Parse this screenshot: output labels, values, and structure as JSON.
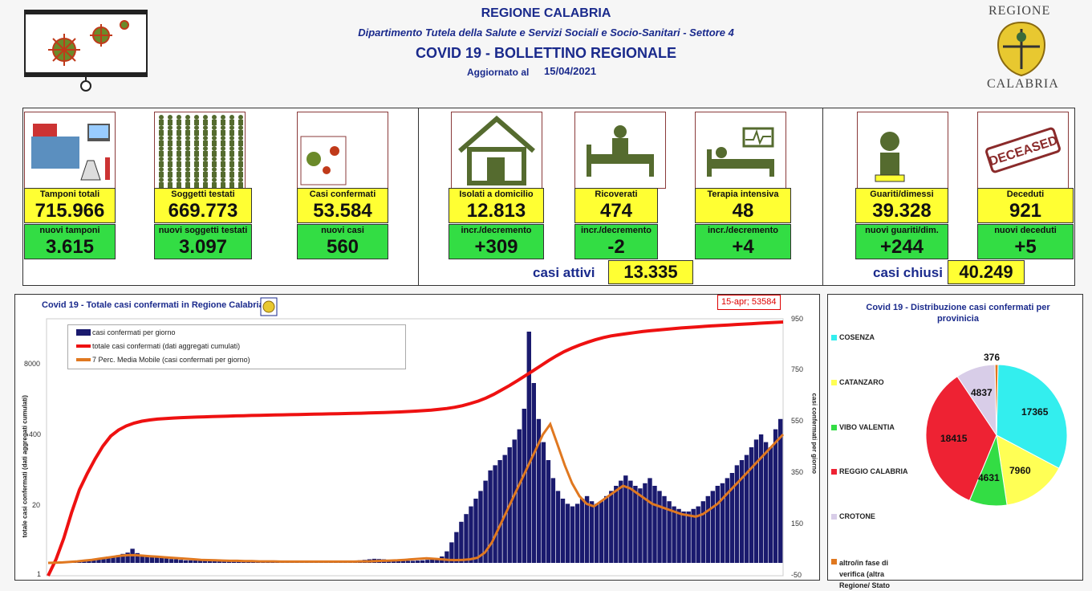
{
  "header": {
    "region": "REGIONE CALABRIA",
    "department": "Dipartimento Tutela della Salute e Servizi Sociali e Socio-Sanitari - Settore 4",
    "bulletin": "COVID 19 - BOLLETTINO REGIONALE",
    "updated_label": "Aggiornato al",
    "updated_date": "15/04/2021",
    "logo_top": "REGIONE",
    "logo_bottom": "CALABRIA"
  },
  "stats": {
    "tamponi": {
      "label": "Tamponi totali",
      "value": "715.966",
      "new_label": "nuovi tamponi",
      "new_value": "3.615"
    },
    "soggetti": {
      "label": "Soggetti testati",
      "value": "669.773",
      "new_label": "nuovi soggetti testati",
      "new_value": "3.097"
    },
    "casi": {
      "label": "Casi confermati",
      "value": "53.584",
      "new_label": "nuovi casi",
      "new_value": "560"
    },
    "isolati": {
      "label": "Isolati a domicilio",
      "value": "12.813",
      "new_label": "incr./decremento",
      "new_value": "+309"
    },
    "ricoverati": {
      "label": "Ricoverati",
      "value": "474",
      "new_label": "incr./decremento",
      "new_value": "-2"
    },
    "terapia": {
      "label": "Terapia intensiva",
      "value": "48",
      "new_label": "incr./decremento",
      "new_value": "+4"
    },
    "guariti": {
      "label": "Guariti/dimessi",
      "value": "39.328",
      "new_label": "nuovi guariti/dim.",
      "new_value": "+244"
    },
    "deceduti": {
      "label": "Deceduti",
      "value": "921",
      "new_label": "nuovi deceduti",
      "new_value": "+5",
      "stamp": "DECEASED"
    }
  },
  "summary": {
    "attivi_label": "casi attivi",
    "attivi_value": "13.335",
    "chiusi_label": "casi chiusi",
    "chiusi_value": "40.249"
  },
  "colors": {
    "yellow": "#ffff33",
    "green": "#33dd44",
    "navy": "#1a2a8c",
    "red": "#ee1111",
    "orange": "#e07820"
  },
  "chart_data": [
    {
      "type": "line",
      "title": "Covid 19 - Totale casi confermati in Regione Calabria",
      "ylabel": "totale casi confermati (dati aggregati cumulati)",
      "y2label": "casi confermati  per giorno",
      "ylog": true,
      "yticks": [
        "8000",
        "400",
        "20",
        "1"
      ],
      "y2ticks": [
        "950",
        "750",
        "550",
        "350",
        "150",
        "-50"
      ],
      "y2lim": [
        -50,
        950
      ],
      "annotation": "15-apr; 53584",
      "series": [
        {
          "name": "casi confermati per giorno",
          "kind": "bar",
          "color": "#1a1a6e",
          "values": [
            0,
            1,
            2,
            3,
            4,
            3,
            5,
            8,
            12,
            15,
            18,
            20,
            25,
            22,
            30,
            35,
            40,
            55,
            38,
            30,
            28,
            25,
            22,
            20,
            18,
            15,
            14,
            12,
            10,
            10,
            9,
            8,
            8,
            7,
            7,
            6,
            6,
            5,
            5,
            5,
            5,
            4,
            4,
            4,
            4,
            3,
            3,
            3,
            3,
            3,
            3,
            3,
            3,
            3,
            3,
            3,
            4,
            4,
            5,
            5,
            6,
            6,
            7,
            8,
            10,
            12,
            14,
            16,
            15,
            14,
            12,
            10,
            9,
            8,
            8,
            8,
            9,
            10,
            12,
            14,
            18,
            25,
            45,
            80,
            120,
            160,
            190,
            220,
            250,
            280,
            320,
            360,
            380,
            400,
            420,
            450,
            480,
            520,
            600,
            900,
            700,
            560,
            470,
            400,
            330,
            280,
            250,
            230,
            220,
            230,
            250,
            260,
            240,
            230,
            240,
            260,
            280,
            300,
            320,
            340,
            320,
            300,
            290,
            310,
            330,
            300,
            280,
            260,
            240,
            220,
            210,
            200,
            200,
            210,
            220,
            240,
            260,
            280,
            300,
            310,
            330,
            350,
            380,
            400,
            420,
            450,
            480,
            500,
            470,
            450,
            520,
            560
          ]
        },
        {
          "name": "totale casi confermati (dati aggregati cumulati)",
          "kind": "line",
          "color": "#ee1111",
          "values": [
            1,
            2,
            5,
            15,
            40,
            80,
            150,
            260,
            400,
            520,
            620,
            700,
            760,
            800,
            830,
            850,
            870,
            885,
            895,
            905,
            915,
            925,
            935,
            945,
            955,
            962,
            970,
            978,
            985,
            992,
            999,
            1006,
            1013,
            1020,
            1027,
            1034,
            1041,
            1048,
            1055,
            1062,
            1070,
            1080,
            1090,
            1100,
            1115,
            1130,
            1150,
            1170,
            1195,
            1220,
            1260,
            1310,
            1380,
            1480,
            1620,
            1800,
            2050,
            2400,
            2900,
            3500,
            4300,
            5300,
            6600,
            8200,
            10200,
            12500,
            15000,
            17500,
            20000,
            22500,
            25000,
            27500,
            29500,
            31000,
            32500,
            34000,
            35500,
            36800,
            38000,
            39200,
            40400,
            41500,
            42500,
            43500,
            44500,
            45400,
            46300,
            47200,
            48100,
            49000,
            49900,
            50800,
            51700,
            52600,
            53584
          ]
        },
        {
          "name": "7 Perc. Media Mobile (casi confermati per giorno)",
          "kind": "line",
          "color": "#e07820",
          "values": [
            0,
            1,
            2,
            4,
            6,
            9,
            12,
            16,
            20,
            24,
            28,
            30,
            30,
            28,
            26,
            24,
            22,
            20,
            18,
            16,
            14,
            12,
            11,
            10,
            9,
            8,
            8,
            7,
            7,
            6,
            6,
            6,
            5,
            5,
            5,
            5,
            5,
            5,
            5,
            5,
            5,
            5,
            5,
            6,
            6,
            7,
            8,
            9,
            10,
            12,
            14,
            16,
            18,
            16,
            14,
            12,
            11,
            12,
            14,
            20,
            40,
            80,
            140,
            200,
            260,
            320,
            380,
            440,
            500,
            540,
            460,
            380,
            310,
            260,
            230,
            220,
            240,
            260,
            280,
            300,
            290,
            270,
            250,
            230,
            220,
            210,
            200,
            190,
            185,
            180,
            190,
            210,
            230,
            260,
            290,
            320,
            350,
            380,
            410,
            440,
            470,
            500
          ]
        }
      ]
    },
    {
      "type": "pie",
      "title": "Covid 19 - Distribuzione casi confermati per provinicia",
      "categories": [
        "COSENZA",
        "CATANZARO",
        "VIBO VALENTIA",
        "REGGIO CALABRIA",
        "CROTONE",
        "altro/in fase di verifica (altra Regione/ Stato"
      ],
      "values": [
        17365,
        7960,
        4631,
        18415,
        4837,
        376
      ],
      "labels": [
        "17365",
        "7960",
        "4631",
        "18415",
        "4837",
        "376"
      ],
      "colors": [
        "#33eeee",
        "#ffff55",
        "#33dd44",
        "#ee2233",
        "#d8cde8",
        "#e07820"
      ],
      "legend": "left"
    }
  ]
}
